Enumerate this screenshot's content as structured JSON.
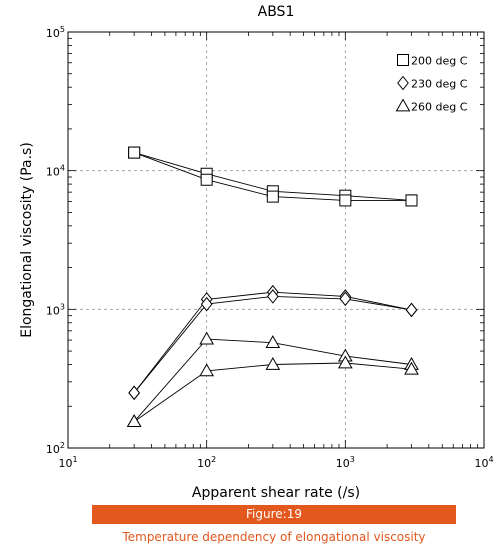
{
  "chart_data": {
    "type": "line",
    "title": "ABS1",
    "xlabel": "Apparent shear rate (/s)",
    "ylabel": "Elongational viscosity (Pa.s)",
    "x_scale": "log",
    "y_scale": "log",
    "xlim": [
      10,
      10000
    ],
    "ylim": [
      100,
      100000
    ],
    "x_ticks": [
      10,
      100,
      1000,
      10000
    ],
    "y_ticks": [
      100,
      1000,
      10000,
      100000
    ],
    "grid": "dashed, at major decades",
    "legend_position": "top-right",
    "series": [
      {
        "name": "200 deg C",
        "marker": "square",
        "lines": [
          {
            "x": [
              30,
              100,
              300,
              1000,
              3000
            ],
            "y": [
              13500,
              9500,
              7100,
              6600,
              6100
            ]
          },
          {
            "x": [
              30,
              100,
              300,
              1000,
              3000
            ],
            "y": [
              13500,
              8600,
              6500,
              6100,
              6100
            ]
          }
        ]
      },
      {
        "name": "230 deg C",
        "marker": "diamond",
        "lines": [
          {
            "x": [
              30,
              100,
              300,
              1000,
              3000
            ],
            "y": [
              250,
              1180,
              1330,
              1240,
              990
            ]
          },
          {
            "x": [
              30,
              100,
              300,
              1000,
              3000
            ],
            "y": [
              250,
              1090,
              1240,
              1190,
              990
            ]
          }
        ]
      },
      {
        "name": "260 deg C",
        "marker": "triangle",
        "lines": [
          {
            "x": [
              30,
              100,
              300,
              1000,
              3000
            ],
            "y": [
              155,
              610,
              575,
              460,
              400
            ]
          },
          {
            "x": [
              30,
              100,
              300,
              1000,
              3000
            ],
            "y": [
              155,
              360,
              400,
              410,
              370
            ]
          }
        ]
      }
    ]
  },
  "figure": {
    "label": "Figure:19",
    "caption": "Temperature dependency of elongational viscosity"
  },
  "colors": {
    "banner": "#e3581c",
    "caption": "#e3581c",
    "ink": "#000000",
    "grid": "#999999"
  }
}
